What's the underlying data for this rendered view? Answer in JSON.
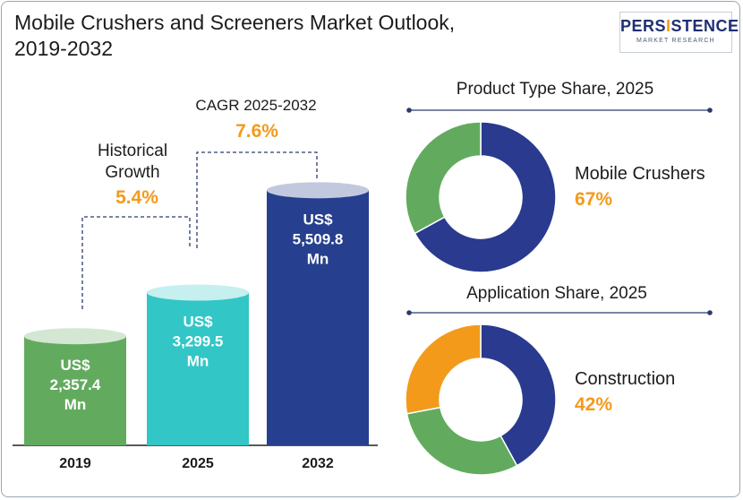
{
  "title_line1": "Mobile Crushers and Screeners Market Outlook,",
  "title_line2": "2019-2032",
  "logo": {
    "main_prefix": "PERS",
    "main_i": "I",
    "main_suffix": "STENCE",
    "sub": "MARKET RESEARCH"
  },
  "annotations": {
    "historical_line1": "Historical",
    "historical_line2": "Growth",
    "historical_value": "5.4%",
    "cagr_label": "CAGR 2025-2032",
    "cagr_value": "7.6%"
  },
  "colors": {
    "bar_2019": "#62ab5e",
    "bar_2025": "#33c6c6",
    "bar_2032": "#263f8e",
    "accent": "#f39a1b",
    "donut_navy": "#2a3a8e",
    "donut_green": "#62ab5e",
    "donut_orange": "#f39a1b",
    "line": "#2a3a6e"
  },
  "chart_data": [
    {
      "type": "bar",
      "title": "",
      "categories": [
        "2019",
        "2025",
        "2032"
      ],
      "values": [
        2357.4,
        3299.5,
        5509.8
      ],
      "value_labels": [
        [
          "US$",
          "2,357.4",
          "Mn"
        ],
        [
          "US$",
          "3,299.5",
          "Mn"
        ],
        [
          "US$",
          "5,509.8",
          "Mn"
        ]
      ],
      "ylim": [
        0,
        6000
      ]
    },
    {
      "type": "pie",
      "title": "Product Type Share, 2025",
      "slices": [
        {
          "label": "Mobile Crushers",
          "value": 67
        },
        {
          "label": "",
          "value": 33
        }
      ],
      "highlight_label": "Mobile Crushers",
      "highlight_value": "67%"
    },
    {
      "type": "pie",
      "title": "Application Share, 2025",
      "slices": [
        {
          "label": "Construction",
          "value": 42
        },
        {
          "label": "",
          "value": 30
        },
        {
          "label": "",
          "value": 28
        }
      ],
      "highlight_label": "Construction",
      "highlight_value": "42%"
    }
  ]
}
